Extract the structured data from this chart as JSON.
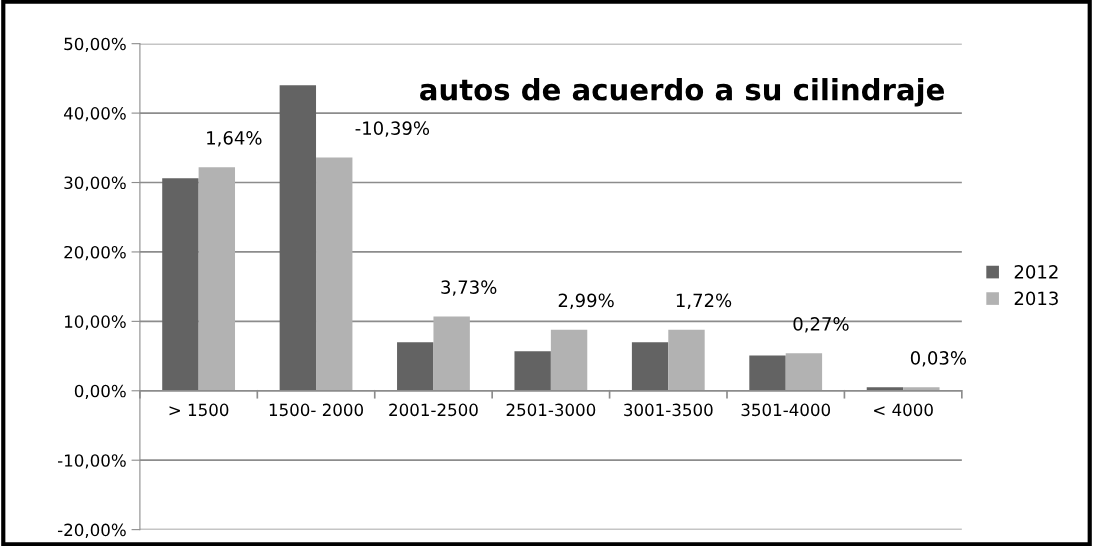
{
  "chart_data": {
    "type": "bar",
    "title": "autos de acuerdo a su cilindraje",
    "categories": [
      "> 1500",
      "1500- 2000",
      "2001-2500",
      "2501-3000",
      "3001-3500",
      "3501-4000",
      "< 4000"
    ],
    "series": [
      {
        "name": "2012",
        "color": "#636363",
        "values": [
          30.6,
          44.0,
          7.0,
          5.7,
          7.0,
          5.1,
          0.5
        ]
      },
      {
        "name": "2013",
        "color": "#b2b2b2",
        "values": [
          32.2,
          33.6,
          10.7,
          8.8,
          8.8,
          5.4,
          0.5
        ]
      }
    ],
    "ylim": [
      -20,
      50
    ],
    "yticks": [
      {
        "value": -20,
        "label": "-20,00%"
      },
      {
        "value": -10,
        "label": "-10,00%"
      },
      {
        "value": 0,
        "label": "0,00%"
      },
      {
        "value": 10,
        "label": "10,00%"
      },
      {
        "value": 20,
        "label": "20,00%"
      },
      {
        "value": 30,
        "label": "30,00%"
      },
      {
        "value": 40,
        "label": "40,00%"
      },
      {
        "value": 50,
        "label": "50,00%"
      }
    ],
    "grid": "y",
    "legend": "right",
    "annotations": [
      "1,64%",
      "-10,39%",
      "3,73%",
      "2,99%",
      "1,72%",
      "0,27%",
      "0,03%"
    ]
  }
}
